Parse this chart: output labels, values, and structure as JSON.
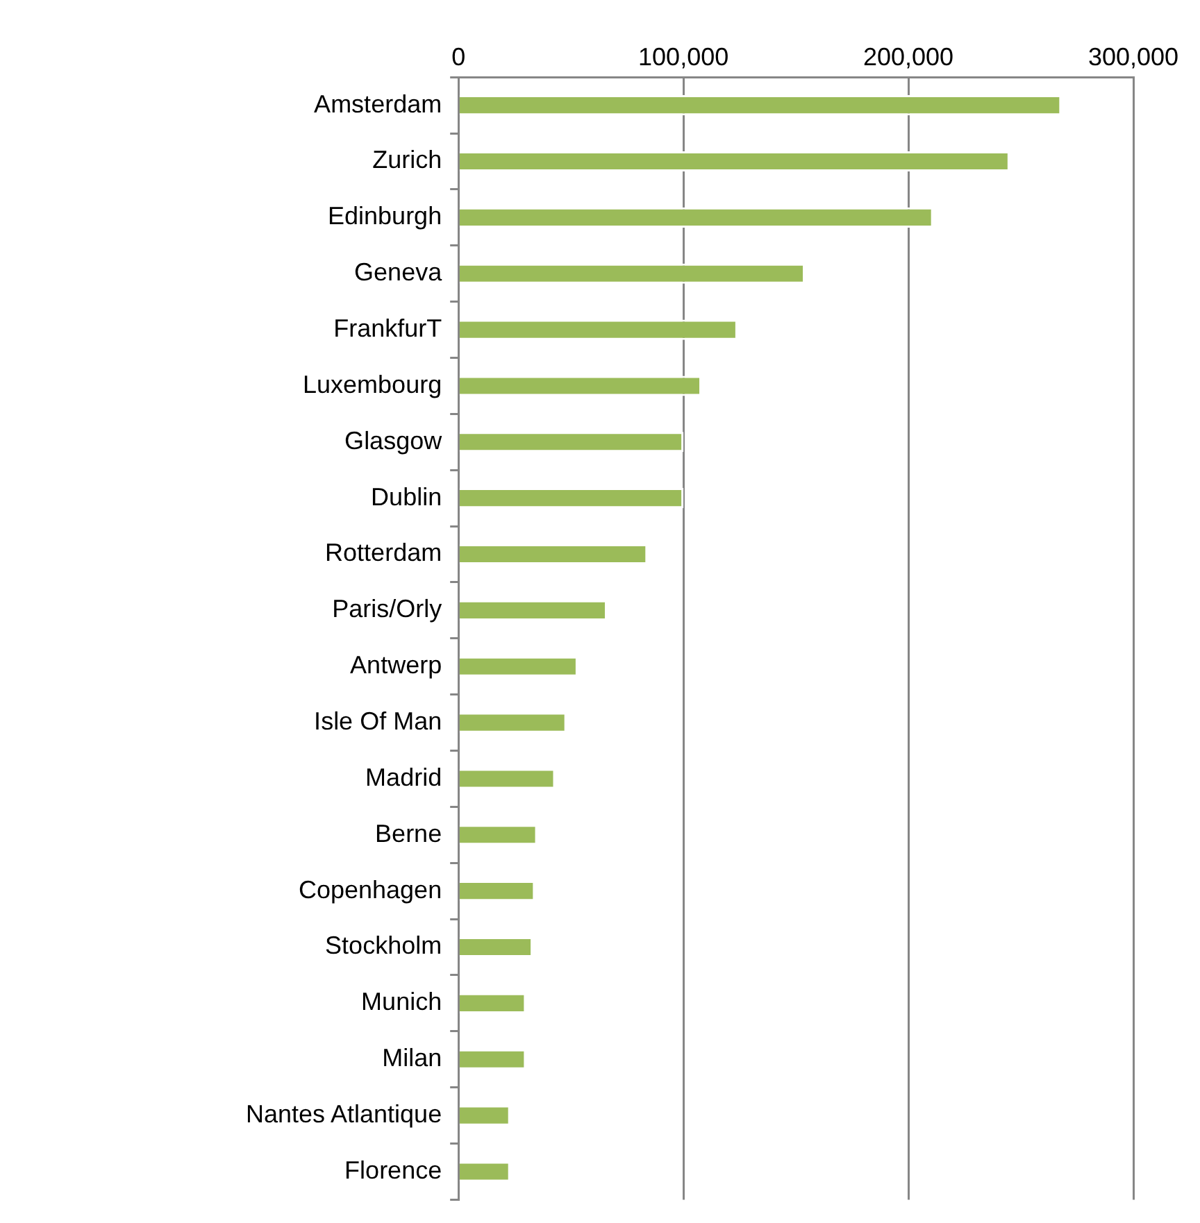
{
  "chart_data": {
    "type": "bar",
    "orientation": "horizontal",
    "categories": [
      "Amsterdam",
      "Zurich",
      "Edinburgh",
      "Geneva",
      "FrankfurT",
      "Luxembourg",
      "Glasgow",
      "Dublin",
      "Rotterdam",
      "Paris/Orly",
      "Antwerp",
      "Isle Of Man",
      "Madrid",
      "Berne",
      "Copenhagen",
      "Stockholm",
      "Munich",
      "Milan",
      "Nantes Atlantique",
      "Florence"
    ],
    "values": [
      268000,
      245000,
      211000,
      154000,
      124000,
      108000,
      100000,
      100000,
      84000,
      66000,
      53000,
      48000,
      43000,
      35000,
      34000,
      33000,
      30000,
      30000,
      23000,
      23000
    ],
    "color": "#9bbb59",
    "xlim": [
      0,
      300000
    ],
    "xticks": [
      0,
      {
        "value": 100000,
        "label": "100,000"
      },
      {
        "value": 200000,
        "label": "200,000"
      },
      {
        "value": 300000,
        "label": "300,000"
      }
    ],
    "grid": "x",
    "legend": false
  }
}
